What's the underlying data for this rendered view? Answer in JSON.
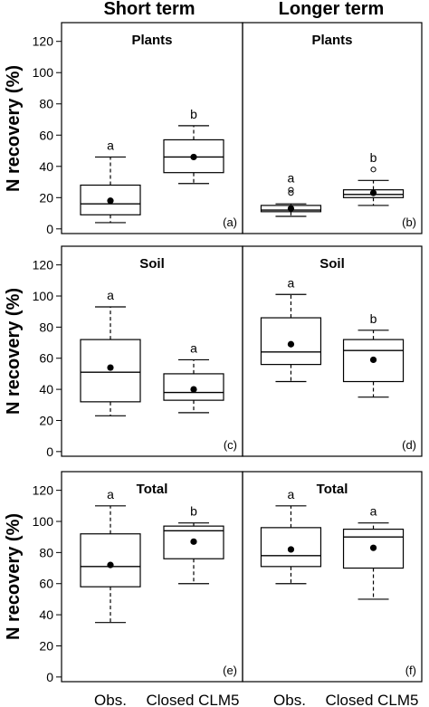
{
  "columns": [
    "Short term",
    "Longer term"
  ],
  "ylabel": "N recovery (%)",
  "xcategories": [
    "Obs.",
    "Closed CLM5"
  ],
  "yticks": [
    0,
    20,
    40,
    60,
    80,
    100,
    120
  ],
  "chart_data": [
    {
      "type": "box",
      "panel": "(a)",
      "title": "Plants",
      "column": "Short term",
      "row": 0,
      "ylim": [
        -3,
        132
      ],
      "boxes": [
        {
          "category": "Obs.",
          "whisker_low": 4,
          "q1": 9,
          "median": 16,
          "q3": 28,
          "whisker_high": 46,
          "mean": 18,
          "outliers": [],
          "letter": "a"
        },
        {
          "category": "Closed CLM5",
          "whisker_low": 29,
          "q1": 36,
          "median": 46,
          "q3": 57,
          "whisker_high": 66,
          "mean": 46,
          "outliers": [],
          "letter": "b"
        }
      ]
    },
    {
      "type": "box",
      "panel": "(b)",
      "title": "Plants",
      "column": "Longer term",
      "row": 0,
      "ylim": [
        -3,
        132
      ],
      "boxes": [
        {
          "category": "Obs.",
          "whisker_low": 8,
          "q1": 11,
          "median": 12,
          "q3": 15,
          "whisker_high": 16,
          "mean": 13,
          "outliers": [
            23,
            25
          ],
          "letter": "a"
        },
        {
          "category": "Closed CLM5",
          "whisker_low": 15,
          "q1": 20,
          "median": 22,
          "q3": 25,
          "whisker_high": 31,
          "mean": 23,
          "outliers": [
            38
          ],
          "letter": "b"
        }
      ]
    },
    {
      "type": "box",
      "panel": "(c)",
      "title": "Soil",
      "column": "Short term",
      "row": 1,
      "ylim": [
        -3,
        132
      ],
      "boxes": [
        {
          "category": "Obs.",
          "whisker_low": 23,
          "q1": 32,
          "median": 51,
          "q3": 72,
          "whisker_high": 93,
          "mean": 54,
          "outliers": [],
          "letter": "a"
        },
        {
          "category": "Closed CLM5",
          "whisker_low": 25,
          "q1": 33,
          "median": 38,
          "q3": 50,
          "whisker_high": 59,
          "mean": 40,
          "outliers": [],
          "letter": "a"
        }
      ]
    },
    {
      "type": "box",
      "panel": "(d)",
      "title": "Soil",
      "column": "Longer term",
      "row": 1,
      "ylim": [
        -3,
        132
      ],
      "boxes": [
        {
          "category": "Obs.",
          "whisker_low": 45,
          "q1": 56,
          "median": 64,
          "q3": 86,
          "whisker_high": 101,
          "mean": 69,
          "outliers": [],
          "letter": "a"
        },
        {
          "category": "Closed CLM5",
          "whisker_low": 35,
          "q1": 45,
          "median": 65,
          "q3": 72,
          "whisker_high": 78,
          "mean": 59,
          "outliers": [],
          "letter": "b"
        }
      ]
    },
    {
      "type": "box",
      "panel": "(e)",
      "title": "Total",
      "column": "Short term",
      "row": 2,
      "ylim": [
        -3,
        132
      ],
      "boxes": [
        {
          "category": "Obs.",
          "whisker_low": 35,
          "q1": 58,
          "median": 71,
          "q3": 92,
          "whisker_high": 110,
          "mean": 72,
          "outliers": [],
          "letter": "a"
        },
        {
          "category": "Closed CLM5",
          "whisker_low": 60,
          "q1": 76,
          "median": 94,
          "q3": 97,
          "whisker_high": 99,
          "mean": 87,
          "outliers": [],
          "letter": "b"
        }
      ]
    },
    {
      "type": "box",
      "panel": "(f)",
      "title": "Total",
      "column": "Longer term",
      "row": 2,
      "ylim": [
        -3,
        132
      ],
      "boxes": [
        {
          "category": "Obs.",
          "whisker_low": 60,
          "q1": 71,
          "median": 78,
          "q3": 96,
          "whisker_high": 110,
          "mean": 82,
          "outliers": [],
          "letter": "a"
        },
        {
          "category": "Closed CLM5",
          "whisker_low": 50,
          "q1": 70,
          "median": 90,
          "q3": 95,
          "whisker_high": 99,
          "mean": 83,
          "outliers": [],
          "letter": "a"
        }
      ]
    }
  ]
}
